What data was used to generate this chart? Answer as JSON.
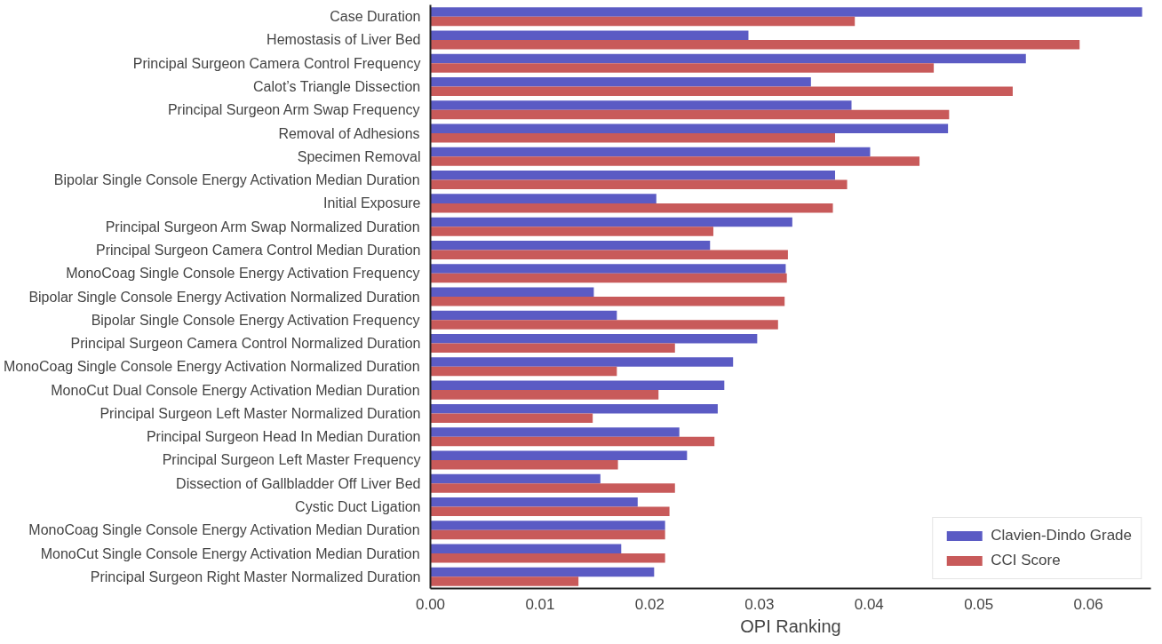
{
  "chart_data": {
    "type": "bar",
    "orientation": "horizontal",
    "xlabel": "OPI Ranking",
    "categories": [
      "Case Duration",
      "Hemostasis of Liver Bed",
      "Principal Surgeon Camera Control Frequency",
      "Calot’s Triangle Dissection",
      "Principal Surgeon Arm Swap Frequency",
      "Removal of Adhesions",
      "Specimen Removal",
      "Bipolar Single Console Energy Activation Median Duration",
      "Initial Exposure",
      "Principal Surgeon Arm Swap Normalized Duration",
      "Principal Surgeon Camera Control Median Duration",
      "MonoCoag Single Console Energy Activation Frequency",
      "Bipolar Single Console Energy Activation Normalized Duration",
      "Bipolar Single Console Energy Activation Frequency",
      "Principal Surgeon Camera Control Normalized Duration",
      "MonoCoag Single Console Energy Activation Normalized Duration",
      "MonoCut Dual Console Energy Activation Median Duration",
      "Principal Surgeon Left Master Normalized Duration",
      "Principal Surgeon Head In Median Duration",
      "Principal Surgeon Left Master Frequency",
      "Dissection of Gallbladder Off Liver Bed",
      "Cystic Duct Ligation",
      "MonoCoag Single Console Energy Activation Median Duration",
      "MonoCut Single Console Energy Activation Median Duration",
      "Principal Surgeon Right Master Normalized Duration"
    ],
    "series": [
      {
        "name": "Clavien-Dindo Grade",
        "color": "#5b5bc4",
        "values": [
          0.0649,
          0.029,
          0.0543,
          0.0347,
          0.0384,
          0.0472,
          0.0401,
          0.0369,
          0.0206,
          0.033,
          0.0255,
          0.0324,
          0.0149,
          0.017,
          0.0298,
          0.0276,
          0.0268,
          0.0262,
          0.0227,
          0.0234,
          0.0155,
          0.0189,
          0.0214,
          0.0174,
          0.0204
        ]
      },
      {
        "name": "CCI Score",
        "color": "#c85a5a",
        "values": [
          0.0387,
          0.0592,
          0.0459,
          0.0531,
          0.0473,
          0.0369,
          0.0446,
          0.038,
          0.0367,
          0.0258,
          0.0326,
          0.0325,
          0.0323,
          0.0317,
          0.0223,
          0.017,
          0.0208,
          0.0148,
          0.0259,
          0.0171,
          0.0223,
          0.0218,
          0.0214,
          0.0214,
          0.0135
        ]
      }
    ],
    "xlim": [
      0,
      0.0657
    ],
    "xticks": [
      {
        "value": 0,
        "label": "0.00"
      },
      {
        "value": 0.01,
        "label": "0.01"
      },
      {
        "value": 0.02,
        "label": "0.02"
      },
      {
        "value": 0.03,
        "label": "0.03"
      },
      {
        "value": 0.04,
        "label": "0.04"
      },
      {
        "value": 0.05,
        "label": "0.05"
      },
      {
        "value": 0.06,
        "label": "0.06"
      }
    ],
    "grid": false,
    "legend": "bottom right"
  }
}
